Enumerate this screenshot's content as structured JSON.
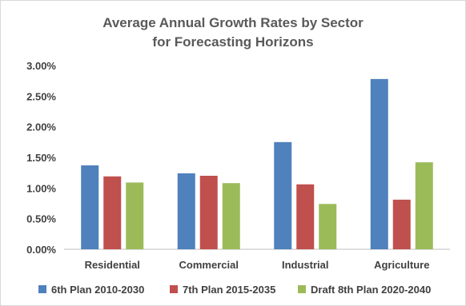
{
  "chart_data": {
    "type": "bar",
    "title_lines": [
      "Average Annual Growth Rates by Sector",
      "for Forecasting Horizons"
    ],
    "categories": [
      "Residential",
      "Commercial",
      "Industrial",
      "Agriculture"
    ],
    "series": [
      {
        "name": "6th Plan 2010-2030",
        "color": "#4f81bd",
        "values": [
          1.37,
          1.24,
          1.75,
          2.78
        ]
      },
      {
        "name": "7th Plan 2015-2035",
        "color": "#c0504d",
        "values": [
          1.19,
          1.2,
          1.06,
          0.81
        ]
      },
      {
        "name": "Draft 8th Plan 2020-2040",
        "color": "#9bbb59",
        "values": [
          1.09,
          1.08,
          0.74,
          1.42
        ]
      }
    ],
    "ylim": [
      0,
      3.0
    ],
    "yticks": [
      "0.00%",
      "0.50%",
      "1.00%",
      "1.50%",
      "2.00%",
      "2.50%",
      "3.00%"
    ],
    "grid": false,
    "legend_position": "bottom"
  }
}
